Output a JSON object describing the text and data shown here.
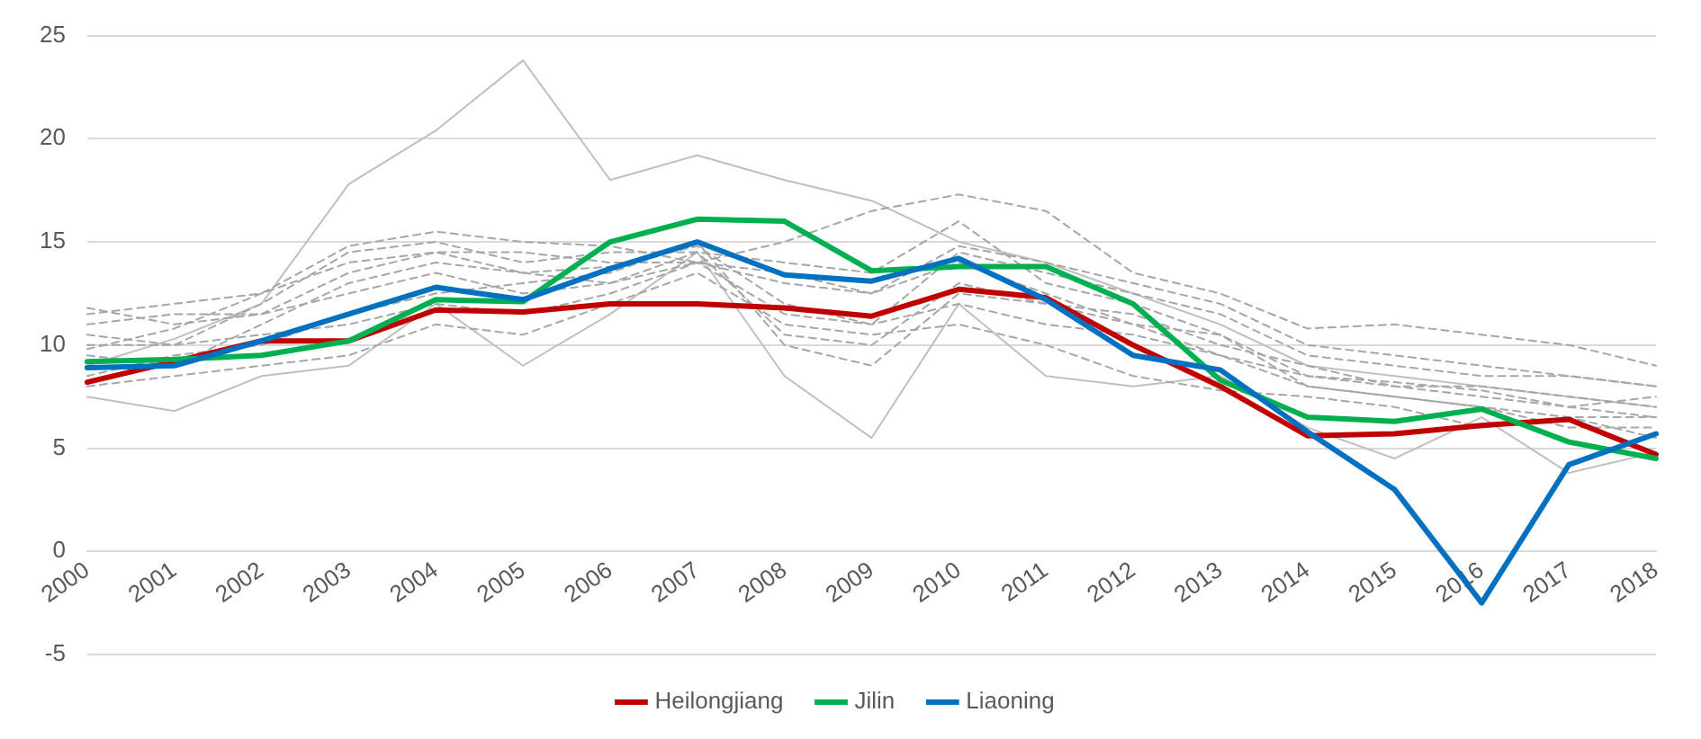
{
  "chart_data": {
    "type": "line",
    "categories": [
      "2000",
      "2001",
      "2002",
      "2003",
      "2004",
      "2005",
      "2006",
      "2007",
      "2008",
      "2009",
      "2010",
      "2011",
      "2012",
      "2013",
      "2014",
      "2015",
      "2016",
      "2017",
      "2018"
    ],
    "ylim": [
      -5,
      25
    ],
    "yticks": [
      -5,
      0,
      5,
      10,
      15,
      20,
      25
    ],
    "grid": "y",
    "legend": "bottom",
    "marker": "none",
    "series": [
      {
        "color": "#bfbfbf",
        "line_style": "solid",
        "values": [
          9.0,
          10.3,
          12.0,
          17.8,
          20.4,
          23.8,
          18.0,
          19.2,
          18.0,
          17.0,
          15.0,
          14.0,
          12.5,
          11.0,
          9.0,
          8.5,
          8.0,
          7.5,
          7.0
        ]
      },
      {
        "color": "#a6a6a6",
        "line_style": "dashed",
        "values": [
          11.5,
          12.0,
          12.5,
          14.8,
          15.5,
          15.0,
          14.8,
          14.0,
          15.0,
          16.5,
          17.3,
          16.5,
          13.5,
          12.5,
          10.8,
          11.0,
          10.5,
          10.0,
          9.0
        ]
      },
      {
        "color": "#bfbfbf",
        "line_style": "solid",
        "values": [
          7.5,
          6.8,
          8.5,
          9.0,
          12.0,
          9.0,
          11.5,
          14.5,
          8.5,
          5.5,
          12.0,
          8.5,
          8.0,
          8.5,
          6.0,
          4.5,
          6.5,
          3.8,
          4.8
        ]
      },
      {
        "color": "#a6a6a6",
        "line_style": "dashed",
        "values": [
          10.5,
          10.0,
          12.0,
          14.5,
          15.0,
          14.0,
          14.5,
          14.5,
          14.0,
          13.5,
          16.0,
          13.0,
          12.0,
          10.5,
          8.0,
          7.5,
          7.0,
          6.5,
          6.5
        ]
      },
      {
        "color": "#a6a6a6",
        "line_style": "dashed",
        "values": [
          9.5,
          9.0,
          11.0,
          13.0,
          14.0,
          13.5,
          13.8,
          14.8,
          12.0,
          11.0,
          14.5,
          13.5,
          12.5,
          11.5,
          9.5,
          9.0,
          8.5,
          8.5,
          8.0
        ]
      },
      {
        "color": "#a6a6a6",
        "line_style": "dashed",
        "values": [
          11.0,
          11.5,
          11.5,
          12.5,
          13.5,
          12.5,
          13.0,
          14.5,
          10.5,
          10.0,
          13.0,
          12.0,
          11.5,
          10.0,
          9.0,
          8.0,
          7.5,
          7.0,
          7.5
        ]
      },
      {
        "color": "#a6a6a6",
        "line_style": "dashed",
        "values": [
          8.5,
          9.5,
          10.0,
          11.5,
          12.5,
          13.0,
          13.5,
          15.0,
          10.0,
          9.0,
          12.5,
          12.0,
          11.0,
          10.5,
          8.5,
          8.0,
          8.0,
          7.5,
          7.0
        ]
      },
      {
        "color": "#a6a6a6",
        "line_style": "dashed",
        "values": [
          10.0,
          10.0,
          10.5,
          11.0,
          12.0,
          11.5,
          12.5,
          14.0,
          11.5,
          11.0,
          12.0,
          11.0,
          10.5,
          9.5,
          8.0,
          7.5,
          7.0,
          6.0,
          6.0
        ]
      },
      {
        "color": "#a6a6a6",
        "line_style": "dashed",
        "values": [
          9.8,
          10.8,
          12.5,
          14.0,
          14.5,
          13.5,
          13.0,
          14.0,
          13.0,
          12.5,
          14.8,
          14.0,
          13.0,
          12.0,
          10.0,
          9.5,
          9.0,
          8.5,
          8.0
        ]
      },
      {
        "color": "#a6a6a6",
        "line_style": "dashed",
        "values": [
          11.8,
          11.0,
          11.5,
          13.5,
          14.5,
          14.5,
          14.0,
          14.0,
          13.5,
          12.5,
          14.0,
          12.5,
          11.0,
          9.5,
          8.5,
          8.2,
          7.8,
          7.0,
          6.5
        ]
      },
      {
        "color": "#a6a6a6",
        "line_style": "dashed",
        "values": [
          8.0,
          8.5,
          9.0,
          9.5,
          11.0,
          10.5,
          12.0,
          13.5,
          11.0,
          10.5,
          11.0,
          10.0,
          8.5,
          7.8,
          7.5,
          7.0,
          6.0,
          6.5,
          5.5
        ]
      },
      {
        "name": "Heilongjiang",
        "color": "#c00000",
        "line_style": "solid",
        "values": [
          8.2,
          9.2,
          10.2,
          10.2,
          11.7,
          11.6,
          12.0,
          12.0,
          11.8,
          11.4,
          12.7,
          12.3,
          10.0,
          8.0,
          5.6,
          5.7,
          6.1,
          6.4,
          4.7
        ]
      },
      {
        "name": "Jilin",
        "color": "#00b050",
        "line_style": "solid",
        "values": [
          9.2,
          9.3,
          9.5,
          10.2,
          12.2,
          12.1,
          15.0,
          16.1,
          16.0,
          13.6,
          13.8,
          13.8,
          12.0,
          8.3,
          6.5,
          6.3,
          6.9,
          5.3,
          4.5
        ]
      },
      {
        "name": "Liaoning",
        "color": "#0070c0",
        "line_style": "solid",
        "values": [
          8.9,
          9.0,
          10.2,
          11.5,
          12.8,
          12.2,
          13.7,
          15.0,
          13.4,
          13.1,
          14.2,
          12.2,
          9.5,
          8.8,
          5.8,
          3.0,
          -2.5,
          4.2,
          5.7
        ]
      }
    ]
  }
}
